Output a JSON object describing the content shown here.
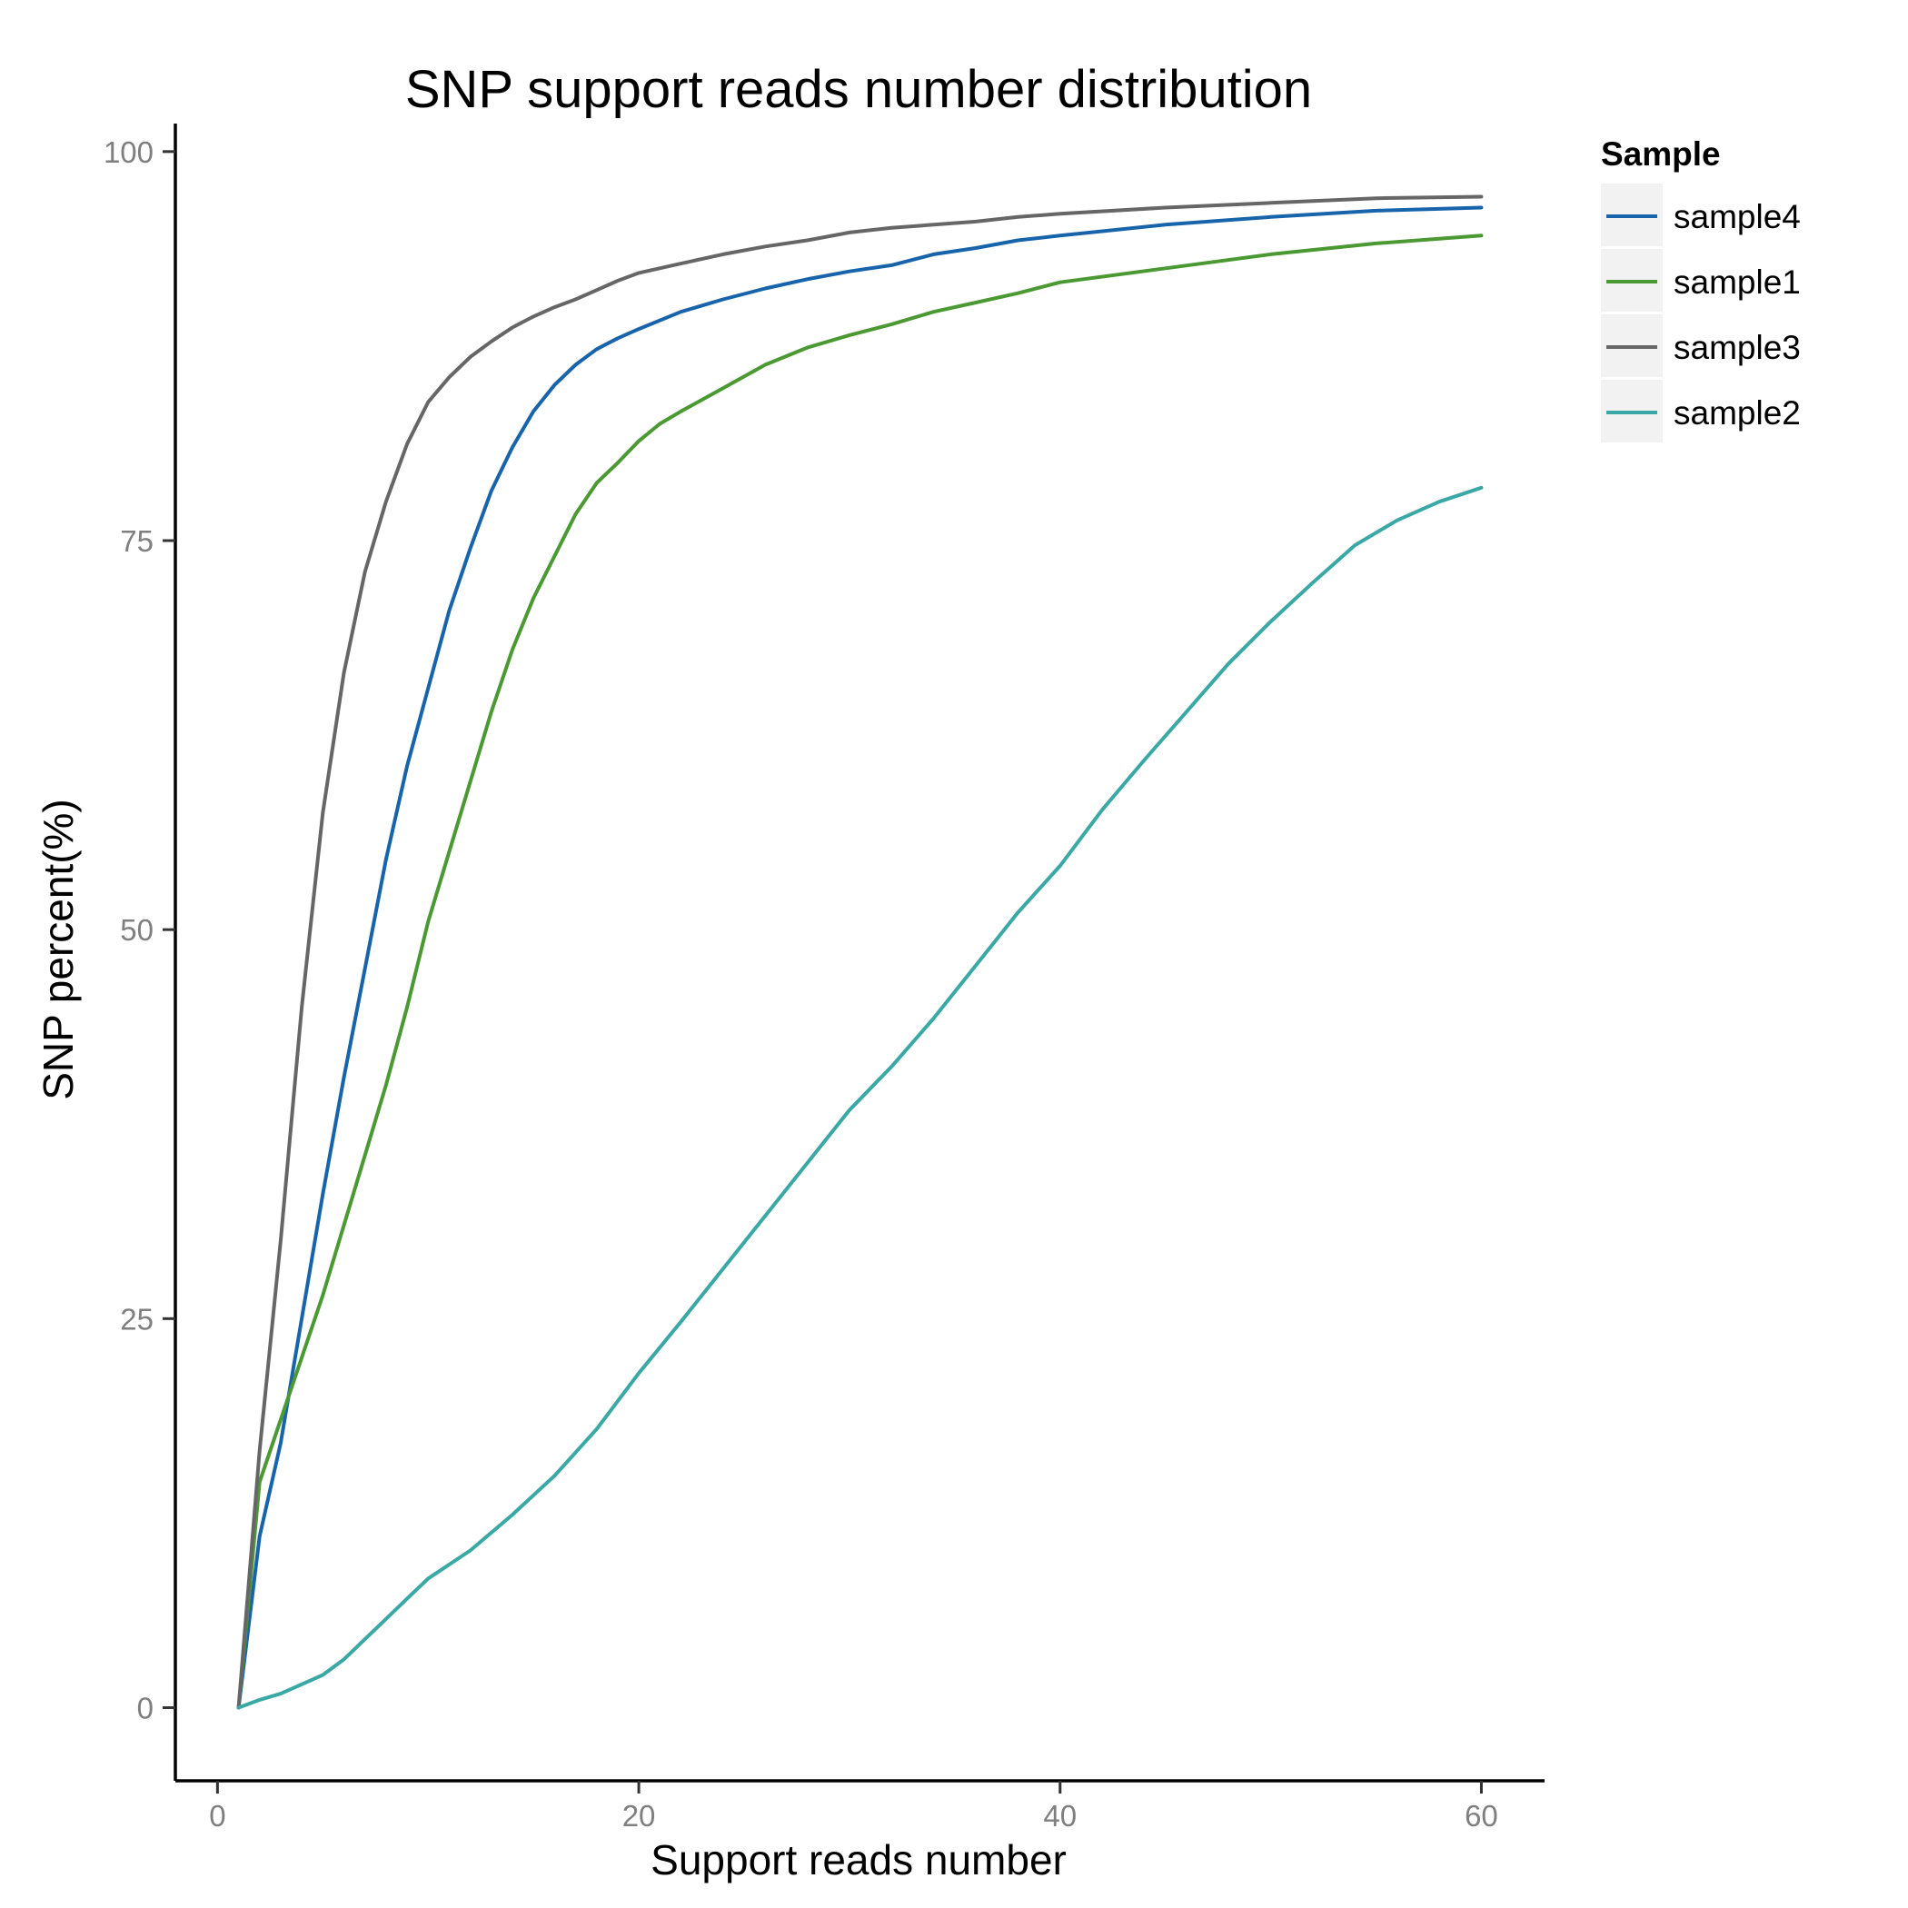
{
  "chart_data": {
    "type": "line",
    "title": "SNP support reads number distribution",
    "xlabel": "Support reads number",
    "ylabel": "SNP percent(%)",
    "xlim": [
      -2,
      63
    ],
    "ylim": [
      -4.7,
      101.8
    ],
    "xticks": [
      0,
      20,
      40,
      60
    ],
    "yticks": [
      0,
      25,
      50,
      75,
      100
    ],
    "grid": false,
    "legend": {
      "title": "Sample",
      "position": "right"
    },
    "series": [
      {
        "name": "sample4",
        "color": "#1764AB",
        "x": [
          1,
          2,
          3,
          4,
          5,
          6,
          7,
          8,
          9,
          10,
          11,
          12,
          13,
          14,
          15,
          16,
          17,
          18,
          19,
          20,
          22,
          24,
          26,
          28,
          30,
          32,
          34,
          36,
          38,
          40,
          45,
          50,
          55,
          60
        ],
        "y": [
          0,
          11,
          17,
          25,
          33,
          40.5,
          47.5,
          54.5,
          60.5,
          65.5,
          70.5,
          74.5,
          78.2,
          81,
          83.3,
          85,
          86.3,
          87.3,
          88,
          88.6,
          89.7,
          90.5,
          91.2,
          91.8,
          92.3,
          92.7,
          93.4,
          93.8,
          94.3,
          94.6,
          95.3,
          95.8,
          96.2,
          96.4
        ]
      },
      {
        "name": "sample1",
        "color": "#4A9932",
        "x": [
          1,
          2,
          3,
          4,
          5,
          6,
          7,
          8,
          9,
          10,
          11,
          12,
          13,
          14,
          15,
          16,
          17,
          18,
          19,
          20,
          21,
          22,
          24,
          26,
          28,
          30,
          32,
          34,
          36,
          38,
          40,
          45,
          50,
          55,
          60
        ],
        "y": [
          0,
          14.5,
          18.5,
          22.5,
          26.5,
          31,
          35.5,
          40,
          45,
          50.5,
          55,
          59.5,
          64,
          68,
          71.3,
          74,
          76.7,
          78.7,
          80,
          81.4,
          82.5,
          83.3,
          84.8,
          86.3,
          87.4,
          88.2,
          88.9,
          89.7,
          90.3,
          90.9,
          91.6,
          92.5,
          93.4,
          94.1,
          94.6
        ]
      },
      {
        "name": "sample3",
        "color": "#666666",
        "x": [
          1,
          2,
          3,
          4,
          5,
          6,
          7,
          8,
          9,
          10,
          11,
          12,
          13,
          14,
          15,
          16,
          17,
          18,
          19,
          20,
          22,
          24,
          26,
          28,
          30,
          32,
          34,
          36,
          38,
          40,
          45,
          50,
          55,
          60
        ],
        "y": [
          0,
          16.5,
          30,
          45,
          57.5,
          66.5,
          73,
          77.5,
          81.2,
          83.9,
          85.5,
          86.8,
          87.8,
          88.7,
          89.4,
          90,
          90.5,
          91.1,
          91.7,
          92.2,
          92.8,
          93.4,
          93.9,
          94.3,
          94.8,
          95.1,
          95.3,
          95.5,
          95.8,
          96,
          96.4,
          96.7,
          97,
          97.1
        ]
      },
      {
        "name": "sample2",
        "color": "#3AA8A4",
        "x": [
          1,
          2,
          3,
          4,
          5,
          6,
          7,
          8,
          9,
          10,
          12,
          14,
          16,
          18,
          20,
          22,
          24,
          26,
          28,
          30,
          32,
          34,
          36,
          38,
          40,
          42,
          44,
          46,
          48,
          50,
          52,
          54,
          56,
          58,
          60
        ],
        "y": [
          0,
          0.5,
          0.9,
          1.5,
          2.1,
          3.1,
          4.4,
          5.7,
          7,
          8.3,
          10.1,
          12.4,
          14.9,
          17.9,
          21.5,
          24.8,
          28.2,
          31.6,
          35,
          38.4,
          41.2,
          44.3,
          47.7,
          51.1,
          54.1,
          57.7,
          60.9,
          64,
          67.1,
          69.8,
          72.3,
          74.7,
          76.3,
          77.5,
          78.4
        ]
      }
    ]
  }
}
